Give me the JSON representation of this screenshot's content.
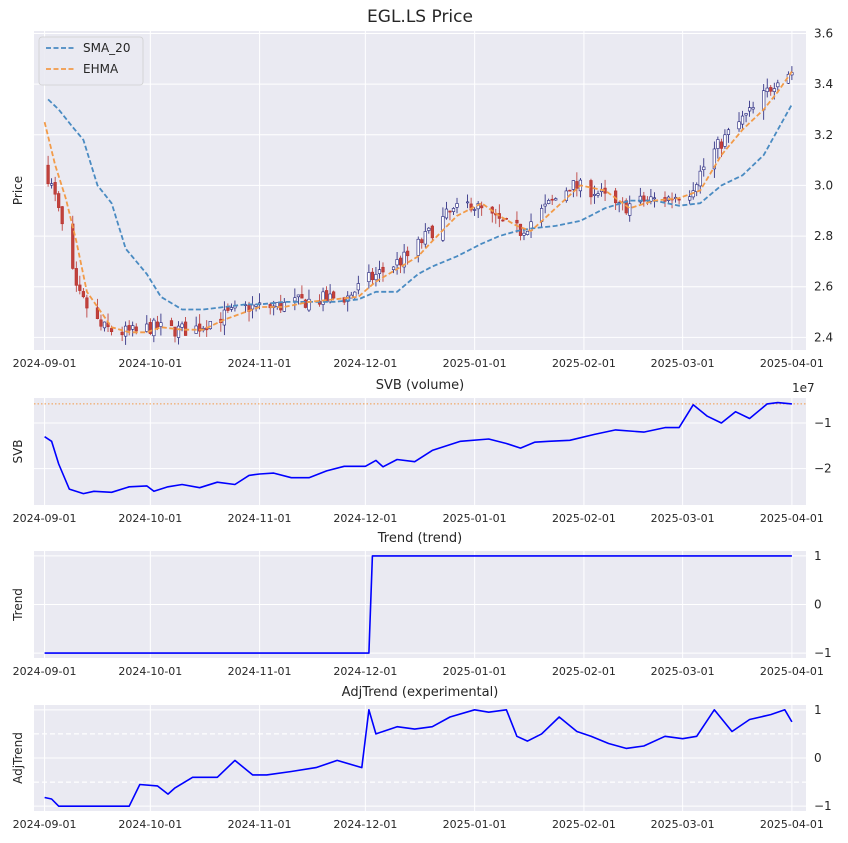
{
  "chart_data": [
    {
      "type": "candlestick",
      "title": "EGL.LS Price",
      "ylabel": "Price",
      "xlabel": "",
      "ylim": [
        2.35,
        3.61
      ],
      "yticks": [
        2.4,
        2.6,
        2.8,
        3.0,
        3.2,
        3.4,
        3.6
      ],
      "ytick_labels": [
        "2.4",
        "2.6",
        "2.8",
        "3.0",
        "3.2",
        "3.4",
        "3.6"
      ],
      "xticks": [
        "2024-09-01",
        "2024-10-01",
        "2024-11-01",
        "2024-12-01",
        "2025-01-01",
        "2025-02-01",
        "2025-03-01",
        "2025-04-01"
      ],
      "x_range": [
        "2024-08-29",
        "2025-04-05"
      ],
      "legend": "top-left",
      "grid": true,
      "series": [
        {
          "name": "SMA_20",
          "style": "dashed",
          "color": "#4a8bc2",
          "x": [
            "2024-09-02",
            "2024-09-05",
            "2024-09-09",
            "2024-09-12",
            "2024-09-16",
            "2024-09-20",
            "2024-09-24",
            "2024-09-30",
            "2024-10-04",
            "2024-10-10",
            "2024-10-16",
            "2024-10-22",
            "2024-10-28",
            "2024-11-01",
            "2024-11-08",
            "2024-11-15",
            "2024-11-22",
            "2024-11-29",
            "2024-12-04",
            "2024-12-10",
            "2024-12-16",
            "2024-12-20",
            "2024-12-27",
            "2025-01-03",
            "2025-01-08",
            "2025-01-13",
            "2025-01-17",
            "2025-01-24",
            "2025-01-31",
            "2025-02-07",
            "2025-02-14",
            "2025-02-21",
            "2025-02-28",
            "2025-03-06",
            "2025-03-12",
            "2025-03-18",
            "2025-03-24",
            "2025-03-28",
            "2025-04-01"
          ],
          "y": [
            3.34,
            3.3,
            3.23,
            3.18,
            3.0,
            2.93,
            2.75,
            2.65,
            2.56,
            2.51,
            2.51,
            2.52,
            2.53,
            2.53,
            2.54,
            2.54,
            2.54,
            2.55,
            2.58,
            2.58,
            2.65,
            2.68,
            2.72,
            2.77,
            2.8,
            2.82,
            2.83,
            2.84,
            2.86,
            2.91,
            2.94,
            2.94,
            2.92,
            2.93,
            3.0,
            3.04,
            3.12,
            3.22,
            3.32
          ]
        },
        {
          "name": "EHMA",
          "style": "dashed",
          "color": "#f29b49",
          "x": [
            "2024-09-01",
            "2024-09-04",
            "2024-09-07",
            "2024-09-10",
            "2024-09-13",
            "2024-09-16",
            "2024-09-20",
            "2024-09-25",
            "2024-09-30",
            "2024-10-04",
            "2024-10-10",
            "2024-10-16",
            "2024-10-22",
            "2024-10-28",
            "2024-11-01",
            "2024-11-08",
            "2024-11-15",
            "2024-11-22",
            "2024-11-29",
            "2024-12-04",
            "2024-12-10",
            "2024-12-16",
            "2024-12-20",
            "2024-12-27",
            "2025-01-03",
            "2025-01-08",
            "2025-01-13",
            "2025-01-17",
            "2025-01-24",
            "2025-01-31",
            "2025-02-07",
            "2025-02-14",
            "2025-02-21",
            "2025-02-28",
            "2025-03-06",
            "2025-03-12",
            "2025-03-18",
            "2025-03-24",
            "2025-03-28",
            "2025-04-01"
          ],
          "y": [
            3.25,
            3.08,
            2.95,
            2.78,
            2.58,
            2.52,
            2.44,
            2.42,
            2.42,
            2.44,
            2.43,
            2.43,
            2.47,
            2.5,
            2.52,
            2.52,
            2.54,
            2.55,
            2.56,
            2.62,
            2.67,
            2.72,
            2.78,
            2.88,
            2.93,
            2.88,
            2.84,
            2.82,
            2.91,
            3.0,
            2.98,
            2.91,
            2.94,
            2.95,
            2.98,
            3.12,
            3.22,
            3.3,
            3.37,
            3.45
          ]
        }
      ]
    },
    {
      "type": "line",
      "title": "SVB (volume)",
      "ylabel": "SVB",
      "xlabel": "",
      "offset_label": "1e7",
      "ylim": [
        -2.8,
        -0.45
      ],
      "yticks": [
        -2,
        -1
      ],
      "ytick_labels": [
        "−2",
        "−1"
      ],
      "xticks": [
        "2024-09-01",
        "2024-10-01",
        "2024-11-01",
        "2024-12-01",
        "2025-01-01",
        "2025-02-01",
        "2025-03-01",
        "2025-04-01"
      ],
      "x_range": [
        "2024-08-29",
        "2025-04-05"
      ],
      "reference_line": -0.58,
      "grid": true,
      "series": [
        {
          "name": "SVB",
          "color": "#0000ff",
          "x": [
            "2024-09-01",
            "2024-09-03",
            "2024-09-05",
            "2024-09-08",
            "2024-09-12",
            "2024-09-15",
            "2024-09-20",
            "2024-09-25",
            "2024-09-30",
            "2024-10-02",
            "2024-10-06",
            "2024-10-10",
            "2024-10-15",
            "2024-10-20",
            "2024-10-25",
            "2024-10-29",
            "2024-11-01",
            "2024-11-05",
            "2024-11-10",
            "2024-11-15",
            "2024-11-20",
            "2024-11-25",
            "2024-12-01",
            "2024-12-04",
            "2024-12-06",
            "2024-12-10",
            "2024-12-15",
            "2024-12-20",
            "2024-12-28",
            "2025-01-05",
            "2025-01-10",
            "2025-01-14",
            "2025-01-18",
            "2025-01-22",
            "2025-01-28",
            "2025-02-04",
            "2025-02-10",
            "2025-02-18",
            "2025-02-24",
            "2025-02-28",
            "2025-03-04",
            "2025-03-08",
            "2025-03-12",
            "2025-03-16",
            "2025-03-20",
            "2025-03-25",
            "2025-03-28",
            "2025-04-01"
          ],
          "y": [
            -1.3,
            -1.4,
            -1.9,
            -2.45,
            -2.55,
            -2.5,
            -2.52,
            -2.4,
            -2.38,
            -2.5,
            -2.4,
            -2.35,
            -2.42,
            -2.3,
            -2.35,
            -2.15,
            -2.12,
            -2.1,
            -2.2,
            -2.2,
            -2.05,
            -1.95,
            -1.95,
            -1.82,
            -1.96,
            -1.8,
            -1.85,
            -1.6,
            -1.4,
            -1.35,
            -1.45,
            -1.55,
            -1.42,
            -1.4,
            -1.38,
            -1.25,
            -1.15,
            -1.2,
            -1.1,
            -1.1,
            -0.6,
            -0.85,
            -1.0,
            -0.75,
            -0.9,
            -0.58,
            -0.55,
            -0.58
          ]
        }
      ]
    },
    {
      "type": "line",
      "title": "Trend (trend)",
      "ylabel": "Trend",
      "xlabel": "",
      "ylim": [
        -1.1,
        1.1
      ],
      "yticks": [
        -1,
        0,
        1
      ],
      "ytick_labels": [
        "−1",
        "0",
        "1"
      ],
      "xticks": [
        "2024-09-01",
        "2024-10-01",
        "2024-11-01",
        "2024-12-01",
        "2025-01-01",
        "2025-02-01",
        "2025-03-01",
        "2025-04-01"
      ],
      "x_range": [
        "2024-08-29",
        "2025-04-05"
      ],
      "grid": true,
      "series": [
        {
          "name": "Trend",
          "color": "#0000ff",
          "x": [
            "2024-09-01",
            "2024-12-02",
            "2024-12-03",
            "2025-04-01"
          ],
          "y": [
            -1,
            -1,
            1,
            1
          ]
        }
      ]
    },
    {
      "type": "line",
      "title": "AdjTrend (experimental)",
      "ylabel": "AdjTrend",
      "xlabel": "",
      "ylim": [
        -1.1,
        1.1
      ],
      "yticks": [
        -1,
        0,
        1
      ],
      "ytick_labels": [
        "−1",
        "0",
        "1"
      ],
      "xticks": [
        "2024-09-01",
        "2024-10-01",
        "2024-11-01",
        "2024-12-01",
        "2025-01-01",
        "2025-02-01",
        "2025-03-01",
        "2025-04-01"
      ],
      "x_range": [
        "2024-08-29",
        "2025-04-05"
      ],
      "reference_lines": [
        -0.5,
        0.5
      ],
      "grid": true,
      "series": [
        {
          "name": "AdjTrend",
          "color": "#0000ff",
          "x": [
            "2024-09-01",
            "2024-09-03",
            "2024-09-05",
            "2024-09-25",
            "2024-09-28",
            "2024-10-03",
            "2024-10-06",
            "2024-10-08",
            "2024-10-13",
            "2024-10-20",
            "2024-10-25",
            "2024-10-30",
            "2024-11-03",
            "2024-11-10",
            "2024-11-17",
            "2024-11-23",
            "2024-11-30",
            "2024-12-02",
            "2024-12-04",
            "2024-12-06",
            "2024-12-10",
            "2024-12-15",
            "2024-12-20",
            "2024-12-25",
            "2025-01-01",
            "2025-01-05",
            "2025-01-10",
            "2025-01-13",
            "2025-01-16",
            "2025-01-20",
            "2025-01-25",
            "2025-01-30",
            "2025-02-03",
            "2025-02-08",
            "2025-02-13",
            "2025-02-18",
            "2025-02-24",
            "2025-03-01",
            "2025-03-05",
            "2025-03-10",
            "2025-03-15",
            "2025-03-20",
            "2025-03-26",
            "2025-03-30",
            "2025-04-01"
          ],
          "y": [
            -0.82,
            -0.85,
            -1.0,
            -1.0,
            -0.55,
            -0.58,
            -0.75,
            -0.62,
            -0.4,
            -0.4,
            -0.05,
            -0.35,
            -0.35,
            -0.28,
            -0.2,
            -0.05,
            -0.2,
            1.0,
            0.5,
            0.55,
            0.65,
            0.6,
            0.65,
            0.85,
            1.0,
            0.95,
            1.0,
            0.45,
            0.35,
            0.5,
            0.85,
            0.55,
            0.45,
            0.3,
            0.2,
            0.25,
            0.45,
            0.4,
            0.45,
            1.0,
            0.55,
            0.8,
            0.9,
            1.0,
            0.75
          ]
        }
      ]
    }
  ]
}
